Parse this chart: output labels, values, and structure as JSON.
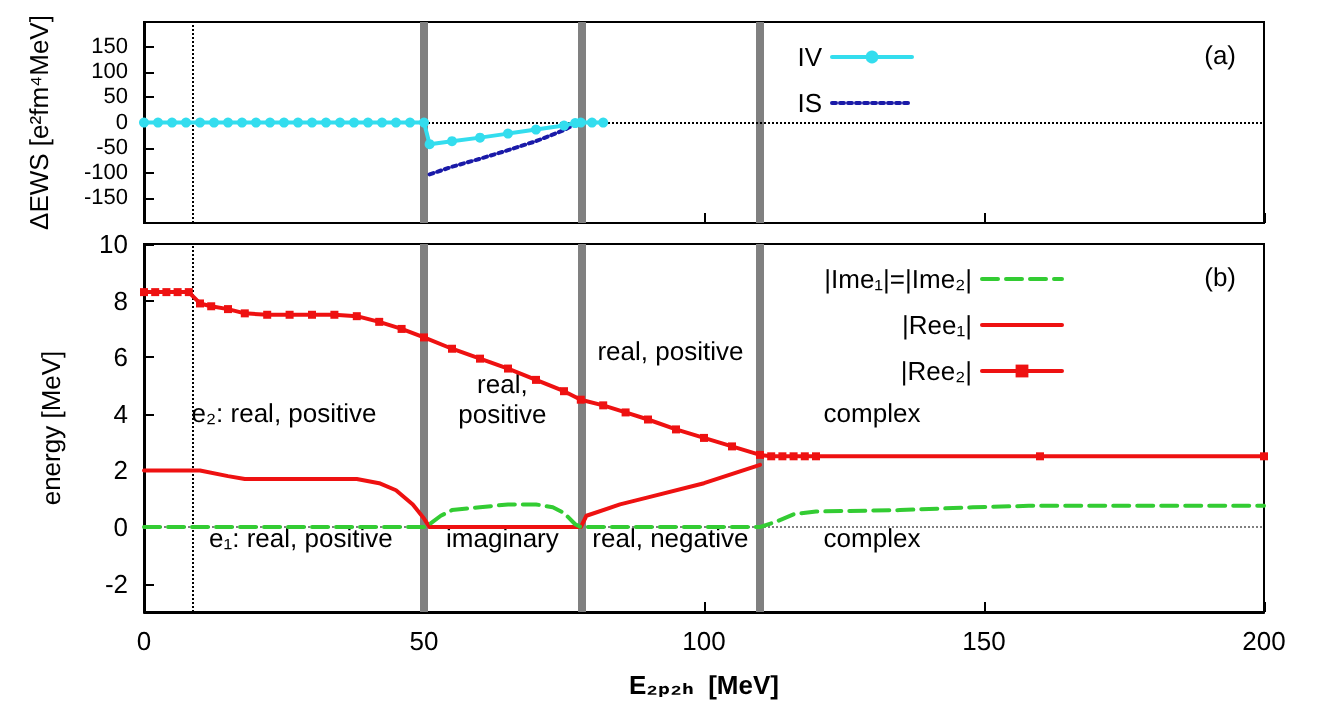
{
  "chart_data": [
    {
      "type": "line",
      "ylabel": "ΔEWS [e²fm⁴MeV]",
      "xlim": [
        0,
        200
      ],
      "xticks": [
        0,
        50,
        100,
        150,
        200
      ],
      "ylim": [
        -200,
        200
      ],
      "yticks": [
        -150,
        -100,
        -50,
        0,
        50,
        100,
        150
      ],
      "tick_labels": "y",
      "grid": false,
      "legend": "top right",
      "annotations": [
        "(a)"
      ],
      "ref_lines": [
        {
          "axis": "x",
          "value": 8.5,
          "color": "#000000",
          "line_style": "dotted"
        },
        {
          "axis": "x",
          "value": 50,
          "color": "#808080",
          "line_style": "solid"
        },
        {
          "axis": "x",
          "value": 78,
          "color": "#808080",
          "line_style": "solid"
        },
        {
          "axis": "x",
          "value": 110,
          "color": "#808080",
          "line_style": "solid"
        },
        {
          "axis": "y",
          "value": 0,
          "color": "#000000",
          "line_style": "dotted"
        }
      ],
      "series": [
        {
          "name": "IV",
          "color": "#33ddee",
          "line_style": "solid",
          "marker": "circle",
          "x": [
            0,
            2.5,
            5,
            7.5,
            10,
            12.5,
            15,
            17.5,
            20,
            22.5,
            25,
            27.5,
            30,
            32.5,
            35,
            37.5,
            40,
            42.5,
            45,
            47.5,
            50,
            51,
            55,
            60,
            65,
            70,
            75,
            77,
            78,
            80,
            82
          ],
          "values": [
            0,
            0,
            0,
            0,
            0,
            0,
            0,
            0,
            0,
            0,
            0,
            0,
            0,
            0,
            0,
            0,
            0,
            0,
            0,
            0,
            0,
            -43,
            -37,
            -30,
            -22,
            -14,
            -6,
            -1,
            0,
            0,
            0
          ]
        },
        {
          "name": "IS",
          "color": "#1a1aa8",
          "line_style": "dotted",
          "marker": "none",
          "x": [
            51,
            55,
            60,
            65,
            70,
            75,
            77
          ],
          "values": [
            -103,
            -88,
            -72,
            -55,
            -37,
            -15,
            -3
          ]
        }
      ]
    },
    {
      "type": "line",
      "ylabel": "energy [MeV]",
      "xlabel": "E₂ₚ₂ₕ  [MeV]",
      "xlim": [
        0,
        200
      ],
      "xticks": [
        0,
        50,
        100,
        150,
        200
      ],
      "ylim": [
        -3,
        10
      ],
      "yticks": [
        -2,
        0,
        2,
        4,
        6,
        8,
        10
      ],
      "grid": false,
      "legend": "top right",
      "annotations": [
        "(b)",
        "e₂: real, positive",
        "real,\npositive",
        "real, positive",
        "complex",
        "e₁: real, positive",
        "imaginary",
        "real, negative",
        "complex"
      ],
      "ref_lines": [
        {
          "axis": "x",
          "value": 8.5,
          "color": "#000000",
          "line_style": "dotted"
        },
        {
          "axis": "x",
          "value": 50,
          "color": "#808080",
          "line_style": "solid"
        },
        {
          "axis": "x",
          "value": 78,
          "color": "#808080",
          "line_style": "solid"
        },
        {
          "axis": "x",
          "value": 110,
          "color": "#808080",
          "line_style": "solid"
        },
        {
          "axis": "y",
          "value": 0,
          "color": "#808080",
          "line_style": "dotted"
        }
      ],
      "series": [
        {
          "name": "|Ime₁|=|Ime₂|",
          "color": "#33cc33",
          "line_style": "dashed",
          "marker": "none",
          "x": [
            0,
            10,
            20,
            30,
            40,
            50,
            51,
            53,
            55,
            60,
            65,
            70,
            73,
            75,
            77,
            78,
            90,
            100,
            110,
            113,
            116,
            120,
            135,
            148,
            158,
            170,
            200
          ],
          "values": [
            0,
            0,
            0,
            0,
            0,
            0,
            0.1,
            0.4,
            0.6,
            0.7,
            0.8,
            0.8,
            0.7,
            0.5,
            0.1,
            0,
            0,
            0,
            0,
            0.2,
            0.45,
            0.55,
            0.6,
            0.7,
            0.75,
            0.75,
            0.75
          ]
        },
        {
          "name": "|Ree₁|",
          "color": "#ee1111",
          "line_style": "solid",
          "marker": "none",
          "x": [
            0,
            10,
            15,
            18,
            38,
            42,
            45,
            48,
            50,
            51,
            60,
            70,
            77,
            78,
            79,
            85,
            90,
            100,
            110
          ],
          "values": [
            2.0,
            2.0,
            1.8,
            1.7,
            1.7,
            1.55,
            1.3,
            0.8,
            0.3,
            0,
            0,
            0,
            0,
            0,
            0.4,
            0.8,
            1.05,
            1.55,
            2.2
          ]
        },
        {
          "name": "|Ree₂|",
          "color": "#ee1111",
          "line_style": "solid",
          "marker": "square",
          "x": [
            0,
            2,
            4,
            6,
            8,
            10,
            12,
            15,
            18,
            22,
            26,
            30,
            34,
            38,
            42,
            46,
            50,
            55,
            60,
            65,
            70,
            75,
            78,
            82,
            86,
            90,
            95,
            100,
            105,
            110,
            112,
            114,
            116,
            118,
            120,
            160,
            200
          ],
          "values": [
            8.3,
            8.3,
            8.3,
            8.3,
            8.3,
            7.9,
            7.8,
            7.7,
            7.55,
            7.5,
            7.5,
            7.5,
            7.5,
            7.45,
            7.25,
            7.0,
            6.7,
            6.3,
            5.95,
            5.6,
            5.2,
            4.8,
            4.5,
            4.3,
            4.05,
            3.8,
            3.45,
            3.15,
            2.85,
            2.55,
            2.5,
            2.5,
            2.5,
            2.5,
            2.5,
            2.5,
            2.5
          ]
        }
      ]
    }
  ]
}
